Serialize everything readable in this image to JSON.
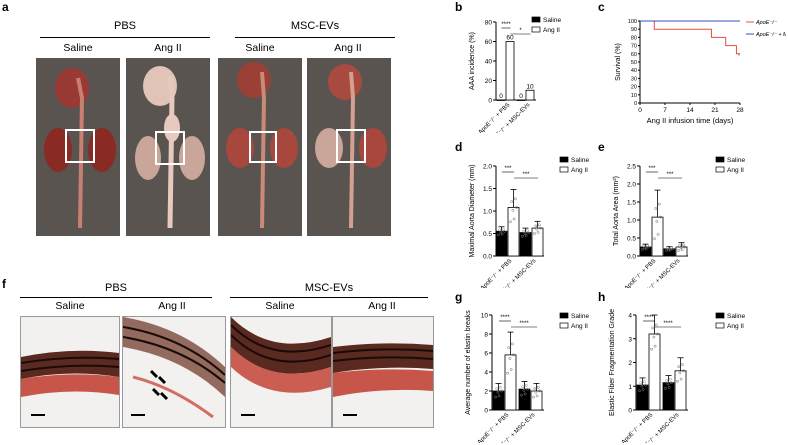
{
  "panels": {
    "a": "a",
    "b": "b",
    "c": "c",
    "d": "d",
    "e": "e",
    "f": "f",
    "g": "g",
    "h": "h"
  },
  "panel_a": {
    "group_left": "PBS",
    "group_right": "MSC-EVs",
    "sublabels": [
      "Saline",
      "Ang II",
      "Saline",
      "Ang II"
    ]
  },
  "panel_f": {
    "group_left": "PBS",
    "group_right": "MSC-EVs",
    "sublabels": [
      "Saline",
      "Ang II",
      "Saline",
      "Ang II"
    ]
  },
  "colors": {
    "saline": "#000000",
    "angii": "#ffffff",
    "stain": "#c0392b",
    "photo_bg": "#5a5450"
  },
  "chart_data": [
    {
      "id": "b",
      "type": "bar",
      "ylabel": "AAA incidence (%)",
      "categories": [
        "ApoE⁻/⁻ + PBS",
        "ApoE⁻/⁻ + MSC-EVs"
      ],
      "series": [
        {
          "name": "Saline",
          "values": [
            0,
            0
          ]
        },
        {
          "name": "Ang II",
          "values": [
            60,
            10
          ]
        }
      ],
      "value_labels": [
        "0",
        "60",
        "0",
        "10"
      ],
      "ylim": [
        0,
        80
      ],
      "yticks": [
        "0",
        "20",
        "40",
        "60",
        "80"
      ],
      "significance": [
        "****",
        "*"
      ]
    },
    {
      "id": "c",
      "type": "line",
      "ylabel": "Survival (%)",
      "xlabel": "Ang II infusion time (days)",
      "xlim": [
        0,
        28
      ],
      "ylim": [
        0,
        100
      ],
      "xticks": [
        "0",
        "7",
        "14",
        "21",
        "28"
      ],
      "yticks": [
        "0",
        "10",
        "20",
        "30",
        "40",
        "50",
        "60",
        "70",
        "80",
        "90",
        "100"
      ],
      "series": [
        {
          "name": "ApoE⁻/⁻",
          "color": "#e74c3c",
          "x": [
            0,
            4,
            4,
            20,
            20,
            24,
            24,
            27,
            27,
            28
          ],
          "y": [
            100,
            100,
            90,
            90,
            80,
            80,
            70,
            70,
            60,
            60
          ]
        },
        {
          "name": "ApoE⁻/⁻ + MI",
          "color": "#3b4cc0",
          "x": [
            0,
            28
          ],
          "y": [
            100,
            100
          ]
        }
      ],
      "annotation": "*"
    },
    {
      "id": "d",
      "type": "bar",
      "ylabel": "Maximal Aorta Diameter (mm)",
      "categories": [
        "ApoE⁻/⁻ + PBS",
        "ApoE⁻/⁻ + MSC-EVs"
      ],
      "series": [
        {
          "name": "Saline",
          "values": [
            0.55,
            0.52
          ],
          "err": [
            0.1,
            0.1
          ]
        },
        {
          "name": "Ang II",
          "values": [
            1.08,
            0.62
          ],
          "err": [
            0.4,
            0.15
          ]
        }
      ],
      "ylim": [
        0,
        2.0
      ],
      "yticks": [
        "0.0",
        "0.5",
        "1.0",
        "1.5",
        "2.0"
      ],
      "significance": [
        "***",
        "***"
      ]
    },
    {
      "id": "e",
      "type": "bar",
      "ylabel": "Total Aorta Area (mm²)",
      "categories": [
        "ApoE⁻/⁻ + PBS",
        "ApoE⁻/⁻ + MSC-EVs"
      ],
      "series": [
        {
          "name": "Saline",
          "values": [
            0.25,
            0.2
          ],
          "err": [
            0.08,
            0.06
          ]
        },
        {
          "name": "Ang II",
          "values": [
            1.08,
            0.25
          ],
          "err": [
            0.75,
            0.12
          ]
        }
      ],
      "ylim": [
        0,
        2.5
      ],
      "yticks": [
        "0.0",
        "0.5",
        "1.0",
        "1.5",
        "2.0",
        "2.5"
      ],
      "significance": [
        "***",
        "***"
      ]
    },
    {
      "id": "g",
      "type": "bar",
      "ylabel": "Average number of elastin breaks",
      "categories": [
        "ApoE⁻/⁻ + PBS",
        "ApoE⁻/⁻ + MSC-EVs"
      ],
      "series": [
        {
          "name": "Saline",
          "values": [
            2.0,
            2.2
          ],
          "err": [
            0.8,
            0.8
          ]
        },
        {
          "name": "Ang II",
          "values": [
            5.8,
            2.0
          ],
          "err": [
            2.4,
            0.8
          ]
        }
      ],
      "ylim": [
        0,
        10
      ],
      "yticks": [
        "0",
        "2",
        "4",
        "6",
        "8",
        "10"
      ],
      "significance": [
        "****",
        "****"
      ]
    },
    {
      "id": "h",
      "type": "bar",
      "ylabel": "Elastic Fiber Fragmentation Grade",
      "categories": [
        "ApoE⁻/⁻ + PBS",
        "ApoE⁻/⁻ + MSC-EVs"
      ],
      "series": [
        {
          "name": "Saline",
          "values": [
            1.05,
            1.15
          ],
          "err": [
            0.3,
            0.3
          ]
        },
        {
          "name": "Ang II",
          "values": [
            3.2,
            1.65
          ],
          "err": [
            0.8,
            0.55
          ]
        }
      ],
      "ylim": [
        0,
        4
      ],
      "yticks": [
        "0",
        "1",
        "2",
        "3",
        "4"
      ],
      "significance": [
        "****",
        "****"
      ]
    }
  ]
}
